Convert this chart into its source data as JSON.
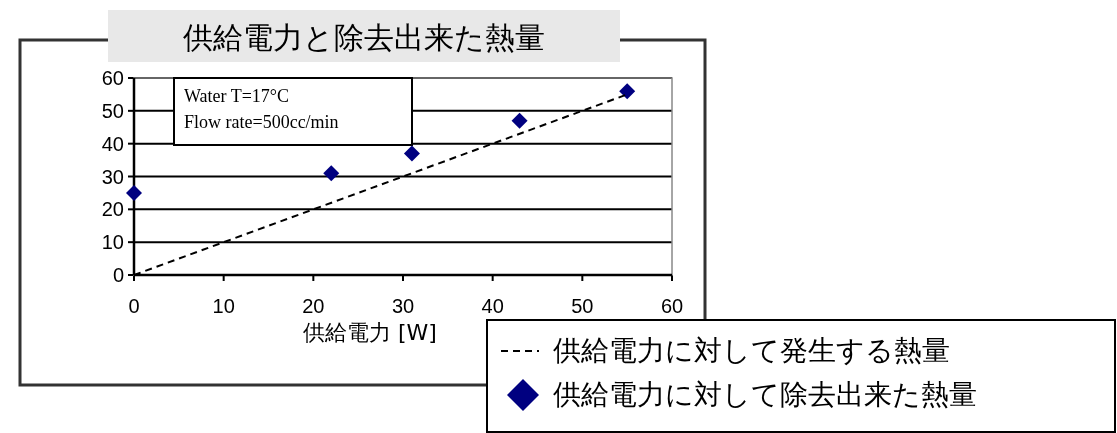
{
  "chart_data": {
    "type": "scatter",
    "title": "供給電力と除去出来た熱量",
    "xlabel": "供給電力 [W]",
    "annotations": [
      "Water T=17°C",
      "Flow rate=500cc/min"
    ],
    "series": [
      {
        "name": "供給電力に対して発生する熱量",
        "type": "line",
        "line_style": "dashed",
        "marker": "none",
        "color": "#000000",
        "x": [
          0,
          55
        ],
        "values": [
          0,
          55
        ]
      },
      {
        "name": "供給電力に対して除去出来た熱量",
        "type": "scatter",
        "marker": "diamond",
        "color": "#000080",
        "x": [
          0,
          22,
          31,
          43,
          55
        ],
        "values": [
          25,
          31,
          37,
          47,
          56
        ]
      }
    ],
    "xlim": [
      0,
      60
    ],
    "ylim": [
      0,
      60
    ],
    "xticks": [
      0,
      10,
      20,
      30,
      40,
      50,
      60
    ],
    "yticks": [
      0,
      10,
      20,
      30,
      40,
      50,
      60
    ],
    "grid": "y",
    "legend": "bottom right"
  }
}
